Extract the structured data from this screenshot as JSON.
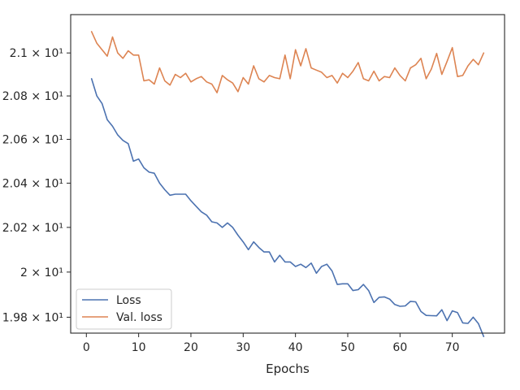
{
  "chart_data": {
    "type": "line",
    "xlabel": "Epochs",
    "ylabel": "",
    "xlim": [
      -3,
      80
    ],
    "ylim": [
      19.73,
      21.18
    ],
    "log_y": true,
    "grid": false,
    "legend_position": "lower-left",
    "x_ticks": [
      0,
      10,
      20,
      30,
      40,
      50,
      60,
      70
    ],
    "x_tick_labels": [
      "0",
      "10",
      "20",
      "30",
      "40",
      "50",
      "60",
      "70"
    ],
    "y_ticks": [
      19.8,
      20.0,
      20.2,
      20.4,
      20.6,
      20.8,
      21.0
    ],
    "y_tick_labels": [
      "1.98 × 10¹",
      "2 × 10¹",
      "2.02 × 10¹",
      "2.04 × 10¹",
      "2.06 × 10¹",
      "2.08 × 10¹",
      "2.1 × 10¹"
    ],
    "x": [
      1,
      2,
      3,
      4,
      5,
      6,
      7,
      8,
      9,
      10,
      11,
      12,
      13,
      14,
      15,
      16,
      17,
      18,
      19,
      20,
      21,
      22,
      23,
      24,
      25,
      26,
      27,
      28,
      29,
      30,
      31,
      32,
      33,
      34,
      35,
      36,
      37,
      38,
      39,
      40,
      41,
      42,
      43,
      44,
      45,
      46,
      47,
      48,
      49,
      50,
      51,
      52,
      53,
      54,
      55,
      56,
      57,
      58,
      59,
      60,
      61,
      62,
      63,
      64,
      65,
      66,
      67,
      68,
      69,
      70,
      71,
      72,
      73,
      74,
      75,
      76
    ],
    "series": [
      {
        "name": "Loss",
        "color": "#4c72b0",
        "values": [
          20.88,
          20.8,
          20.765,
          20.69,
          20.66,
          20.62,
          20.595,
          20.58,
          20.5,
          20.51,
          20.47,
          20.45,
          20.445,
          20.4,
          20.37,
          20.345,
          20.35,
          20.35,
          20.35,
          20.32,
          20.295,
          20.27,
          20.255,
          20.225,
          20.22,
          20.2,
          20.22,
          20.2,
          20.165,
          20.135,
          20.1,
          20.135,
          20.11,
          20.09,
          20.09,
          20.045,
          20.075,
          20.045,
          20.045,
          20.025,
          20.035,
          20.02,
          20.04,
          19.995,
          20.025,
          20.035,
          20.005,
          19.945,
          19.948,
          19.948,
          19.918,
          19.922,
          19.945,
          19.918,
          19.865,
          19.888,
          19.89,
          19.88,
          19.856,
          19.848,
          19.85,
          19.87,
          19.868,
          19.825,
          19.808,
          19.807,
          19.806,
          19.833,
          19.785,
          19.828,
          19.82,
          19.775,
          19.773,
          19.8,
          19.772,
          19.715
        ]
      },
      {
        "name": "Val. loss",
        "color": "#dd8452",
        "values": [
          21.1,
          21.045,
          21.015,
          20.985,
          21.075,
          21.0,
          20.975,
          21.01,
          20.99,
          20.99,
          20.87,
          20.875,
          20.855,
          20.93,
          20.87,
          20.85,
          20.9,
          20.885,
          20.905,
          20.865,
          20.88,
          20.89,
          20.865,
          20.855,
          20.815,
          20.895,
          20.875,
          20.86,
          20.82,
          20.885,
          20.855,
          20.94,
          20.88,
          20.865,
          20.895,
          20.885,
          20.88,
          20.99,
          20.88,
          21.015,
          20.94,
          21.02,
          20.93,
          20.92,
          20.91,
          20.885,
          20.895,
          20.86,
          20.905,
          20.885,
          20.915,
          20.955,
          20.88,
          20.87,
          20.915,
          20.87,
          20.89,
          20.885,
          20.93,
          20.895,
          20.87,
          20.93,
          20.945,
          20.975,
          20.88,
          20.925,
          20.998,
          20.9,
          20.96,
          21.025,
          20.89,
          20.895,
          20.94,
          20.97,
          20.945,
          21.0
        ]
      }
    ]
  }
}
